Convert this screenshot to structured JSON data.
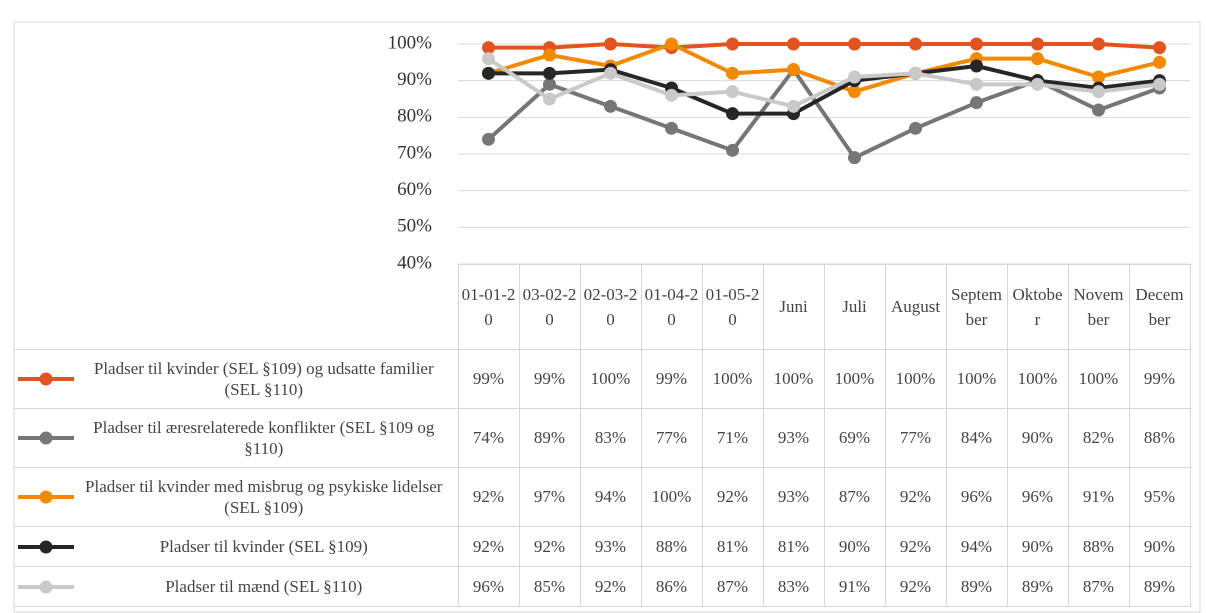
{
  "chart_data": {
    "type": "line",
    "categories": [
      "01-01-20",
      "03-02-20",
      "02-03-20",
      "01-04-20",
      "01-05-20",
      "Juni",
      "Juli",
      "August",
      "September",
      "Oktober",
      "November",
      "December"
    ],
    "ylim": [
      40,
      100
    ],
    "yticks": [
      {
        "value": 40,
        "label": "40%"
      },
      {
        "value": 50,
        "label": "50%"
      },
      {
        "value": 60,
        "label": "60%"
      },
      {
        "value": 70,
        "label": "70%"
      },
      {
        "value": 80,
        "label": "80%"
      },
      {
        "value": 90,
        "label": "90%"
      },
      {
        "value": 100,
        "label": "100%"
      }
    ],
    "grid": true,
    "series": [
      {
        "name": "Pladser til kvinder (SEL §109) og udsatte familier (SEL §110)",
        "color": "#e2531f",
        "values": [
          99,
          99,
          100,
          99,
          100,
          100,
          100,
          100,
          100,
          100,
          100,
          99
        ],
        "value_labels": [
          "99%",
          "99%",
          "100%",
          "99%",
          "100%",
          "100%",
          "100%",
          "100%",
          "100%",
          "100%",
          "100%",
          "99%"
        ]
      },
      {
        "name": "Pladser til æresrelaterede konflikter (SEL §109 og §110)",
        "color": "#767676",
        "values": [
          74,
          89,
          83,
          77,
          71,
          93,
          69,
          77,
          84,
          90,
          82,
          88
        ],
        "value_labels": [
          "74%",
          "89%",
          "83%",
          "77%",
          "71%",
          "93%",
          "69%",
          "77%",
          "84%",
          "90%",
          "82%",
          "88%"
        ]
      },
      {
        "name": "Pladser til kvinder med misbrug og psykiske lidelser (SEL §109)",
        "color": "#f28a00",
        "values": [
          92,
          97,
          94,
          100,
          92,
          93,
          87,
          92,
          96,
          96,
          91,
          95
        ],
        "value_labels": [
          "92%",
          "97%",
          "94%",
          "100%",
          "92%",
          "93%",
          "87%",
          "92%",
          "96%",
          "96%",
          "91%",
          "95%"
        ]
      },
      {
        "name": "Pladser til kvinder (SEL §109)",
        "color": "#262626",
        "values": [
          92,
          92,
          93,
          88,
          81,
          81,
          90,
          92,
          94,
          90,
          88,
          90
        ],
        "value_labels": [
          "92%",
          "92%",
          "93%",
          "88%",
          "81%",
          "81%",
          "90%",
          "92%",
          "94%",
          "90%",
          "88%",
          "90%"
        ]
      },
      {
        "name": "Pladser til mænd (SEL §110)",
        "color": "#c9c9c9",
        "values": [
          96,
          85,
          92,
          86,
          87,
          83,
          91,
          92,
          89,
          89,
          87,
          89
        ],
        "value_labels": [
          "96%",
          "85%",
          "92%",
          "86%",
          "87%",
          "83%",
          "91%",
          "92%",
          "89%",
          "89%",
          "87%",
          "89%"
        ]
      }
    ]
  }
}
